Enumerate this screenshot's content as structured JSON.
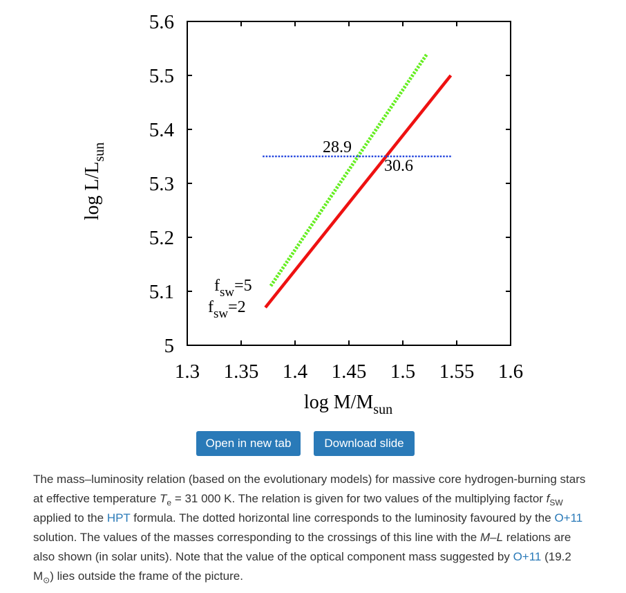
{
  "chart_data": {
    "type": "line",
    "xlabel": "log M/M",
    "xlabel_sub": "sun",
    "ylabel": "log L/L",
    "ylabel_sub": "sun",
    "xlim": [
      1.3,
      1.6
    ],
    "ylim": [
      5.0,
      5.6
    ],
    "xticks": [
      1.3,
      1.35,
      1.4,
      1.45,
      1.5,
      1.55,
      1.6
    ],
    "xtick_labels": [
      "1.3",
      "1.35",
      "1.4",
      "1.45",
      "1.5",
      "1.55",
      "1.6"
    ],
    "yticks": [
      5.0,
      5.1,
      5.2,
      5.3,
      5.4,
      5.5,
      5.6
    ],
    "ytick_labels": [
      "5",
      "5.1",
      "5.2",
      "5.3",
      "5.4",
      "5.5",
      "5.6"
    ],
    "series": [
      {
        "name": "f_SW=5",
        "style": "dotted",
        "color": "#66ee22",
        "x": [
          1.3775,
          1.5225
        ],
        "y": [
          5.11,
          5.54
        ]
      },
      {
        "name": "f_SW=2",
        "style": "solid",
        "color": "#ee1111",
        "x": [
          1.3725,
          1.5445
        ],
        "y": [
          5.07,
          5.5
        ]
      },
      {
        "name": "O+11 luminosity",
        "style": "dotted",
        "color": "#2244dd",
        "x": [
          1.37,
          1.546
        ],
        "y": [
          5.35,
          5.35
        ]
      }
    ],
    "series_labels": [
      {
        "f": "f",
        "sub": "sw",
        "eq": "=5"
      },
      {
        "f": "f",
        "sub": "sw",
        "eq": "=2"
      }
    ],
    "annotations": [
      {
        "text": "28.9",
        "x": 1.4612,
        "y": 5.35
      },
      {
        "text": "30.6",
        "x": 1.4846,
        "y": 5.35
      }
    ]
  },
  "buttons": {
    "open": "Open in new tab",
    "download": "Download slide"
  },
  "caption": {
    "p1": "The mass–luminosity relation (based on the evolutionary models) for massive core hydrogen-burning stars at effective temperature ",
    "te_var": "T",
    "te_sub": "e",
    "p2": " = 31 000 K. The relation is given for two values of the multiplying factor ",
    "f_var": "f",
    "f_sub": "SW",
    "p3": " applied to the ",
    "link_hpt": "HPT",
    "p4": " formula. The dotted horizontal line corresponds to the luminosity favoured by the ",
    "link_o11_a": "O+11",
    "p5": " solution. The values of the masses corresponding to the crossings of this line with the ",
    "ml": "M–L",
    "p6": " relations are also shown (in solar units). Note that the value of the optical component mass suggested by ",
    "link_o11_b": "O+11",
    "p7": " (19.2 M",
    "sun_symbol": "⊙",
    "p8": ") lies outside the frame of the picture."
  }
}
